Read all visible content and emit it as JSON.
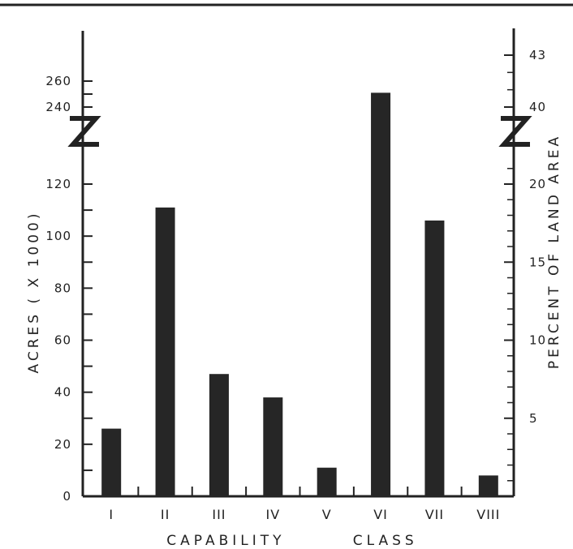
{
  "chart_data": {
    "type": "bar",
    "categories": [
      "I",
      "II",
      "III",
      "IV",
      "V",
      "VI",
      "VII",
      "VIII"
    ],
    "values": [
      26,
      111,
      47,
      38,
      11,
      251,
      106,
      8
    ],
    "xlabel": "CAPABILITY        CLASS",
    "ylabel": "ACRES ( X 1000)",
    "ylabel_right": "PERCENT OF LAND AREA",
    "y_axis_break": {
      "from": 130,
      "to": 230
    },
    "left_ticks": [
      "0",
      "20",
      "40",
      "60",
      "80",
      "100",
      "120",
      "240",
      "260"
    ],
    "left_tick_values": [
      0,
      20,
      40,
      60,
      80,
      100,
      120,
      240,
      260
    ],
    "right_ticks": [
      "5",
      "10",
      "15",
      "20",
      "40",
      "43"
    ],
    "right_tick_values": [
      5,
      10,
      15,
      20,
      40,
      43
    ],
    "grid": false,
    "bar_color": "#262626"
  }
}
